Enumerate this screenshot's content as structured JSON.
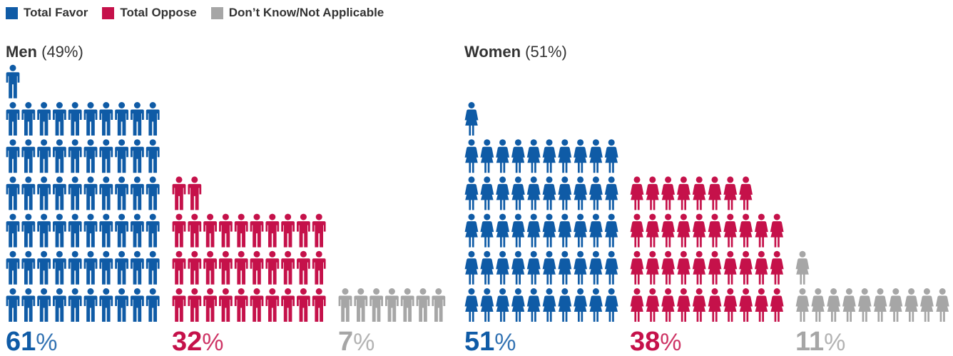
{
  "legend": [
    {
      "label": "Total Favor",
      "color": "#0f5ba6"
    },
    {
      "label": "Total Oppose",
      "color": "#c5114a"
    },
    {
      "label": "Don’t Know/Not Applicable",
      "color": "#a6a6a6"
    }
  ],
  "chart_data": [
    {
      "type": "pictograph",
      "title": "Men",
      "share": "(49%)",
      "icon": "man-icon",
      "categories": [
        "Total Favor",
        "Total Oppose",
        "Don’t Know/Not Applicable"
      ],
      "values": [
        61,
        32,
        7
      ],
      "labels": [
        {
          "num": "61",
          "sign": "%"
        },
        {
          "num": "32",
          "sign": "%"
        },
        {
          "num": "7",
          "sign": "%"
        }
      ]
    },
    {
      "type": "pictograph",
      "title": "Women",
      "share": "(51%)",
      "icon": "woman-icon",
      "categories": [
        "Total Favor",
        "Total Oppose",
        "Don’t Know/Not Applicable"
      ],
      "values": [
        51,
        38,
        11
      ],
      "labels": [
        {
          "num": "51",
          "sign": "%"
        },
        {
          "num": "38",
          "sign": "%"
        },
        {
          "num": "11",
          "sign": "%"
        }
      ]
    }
  ]
}
